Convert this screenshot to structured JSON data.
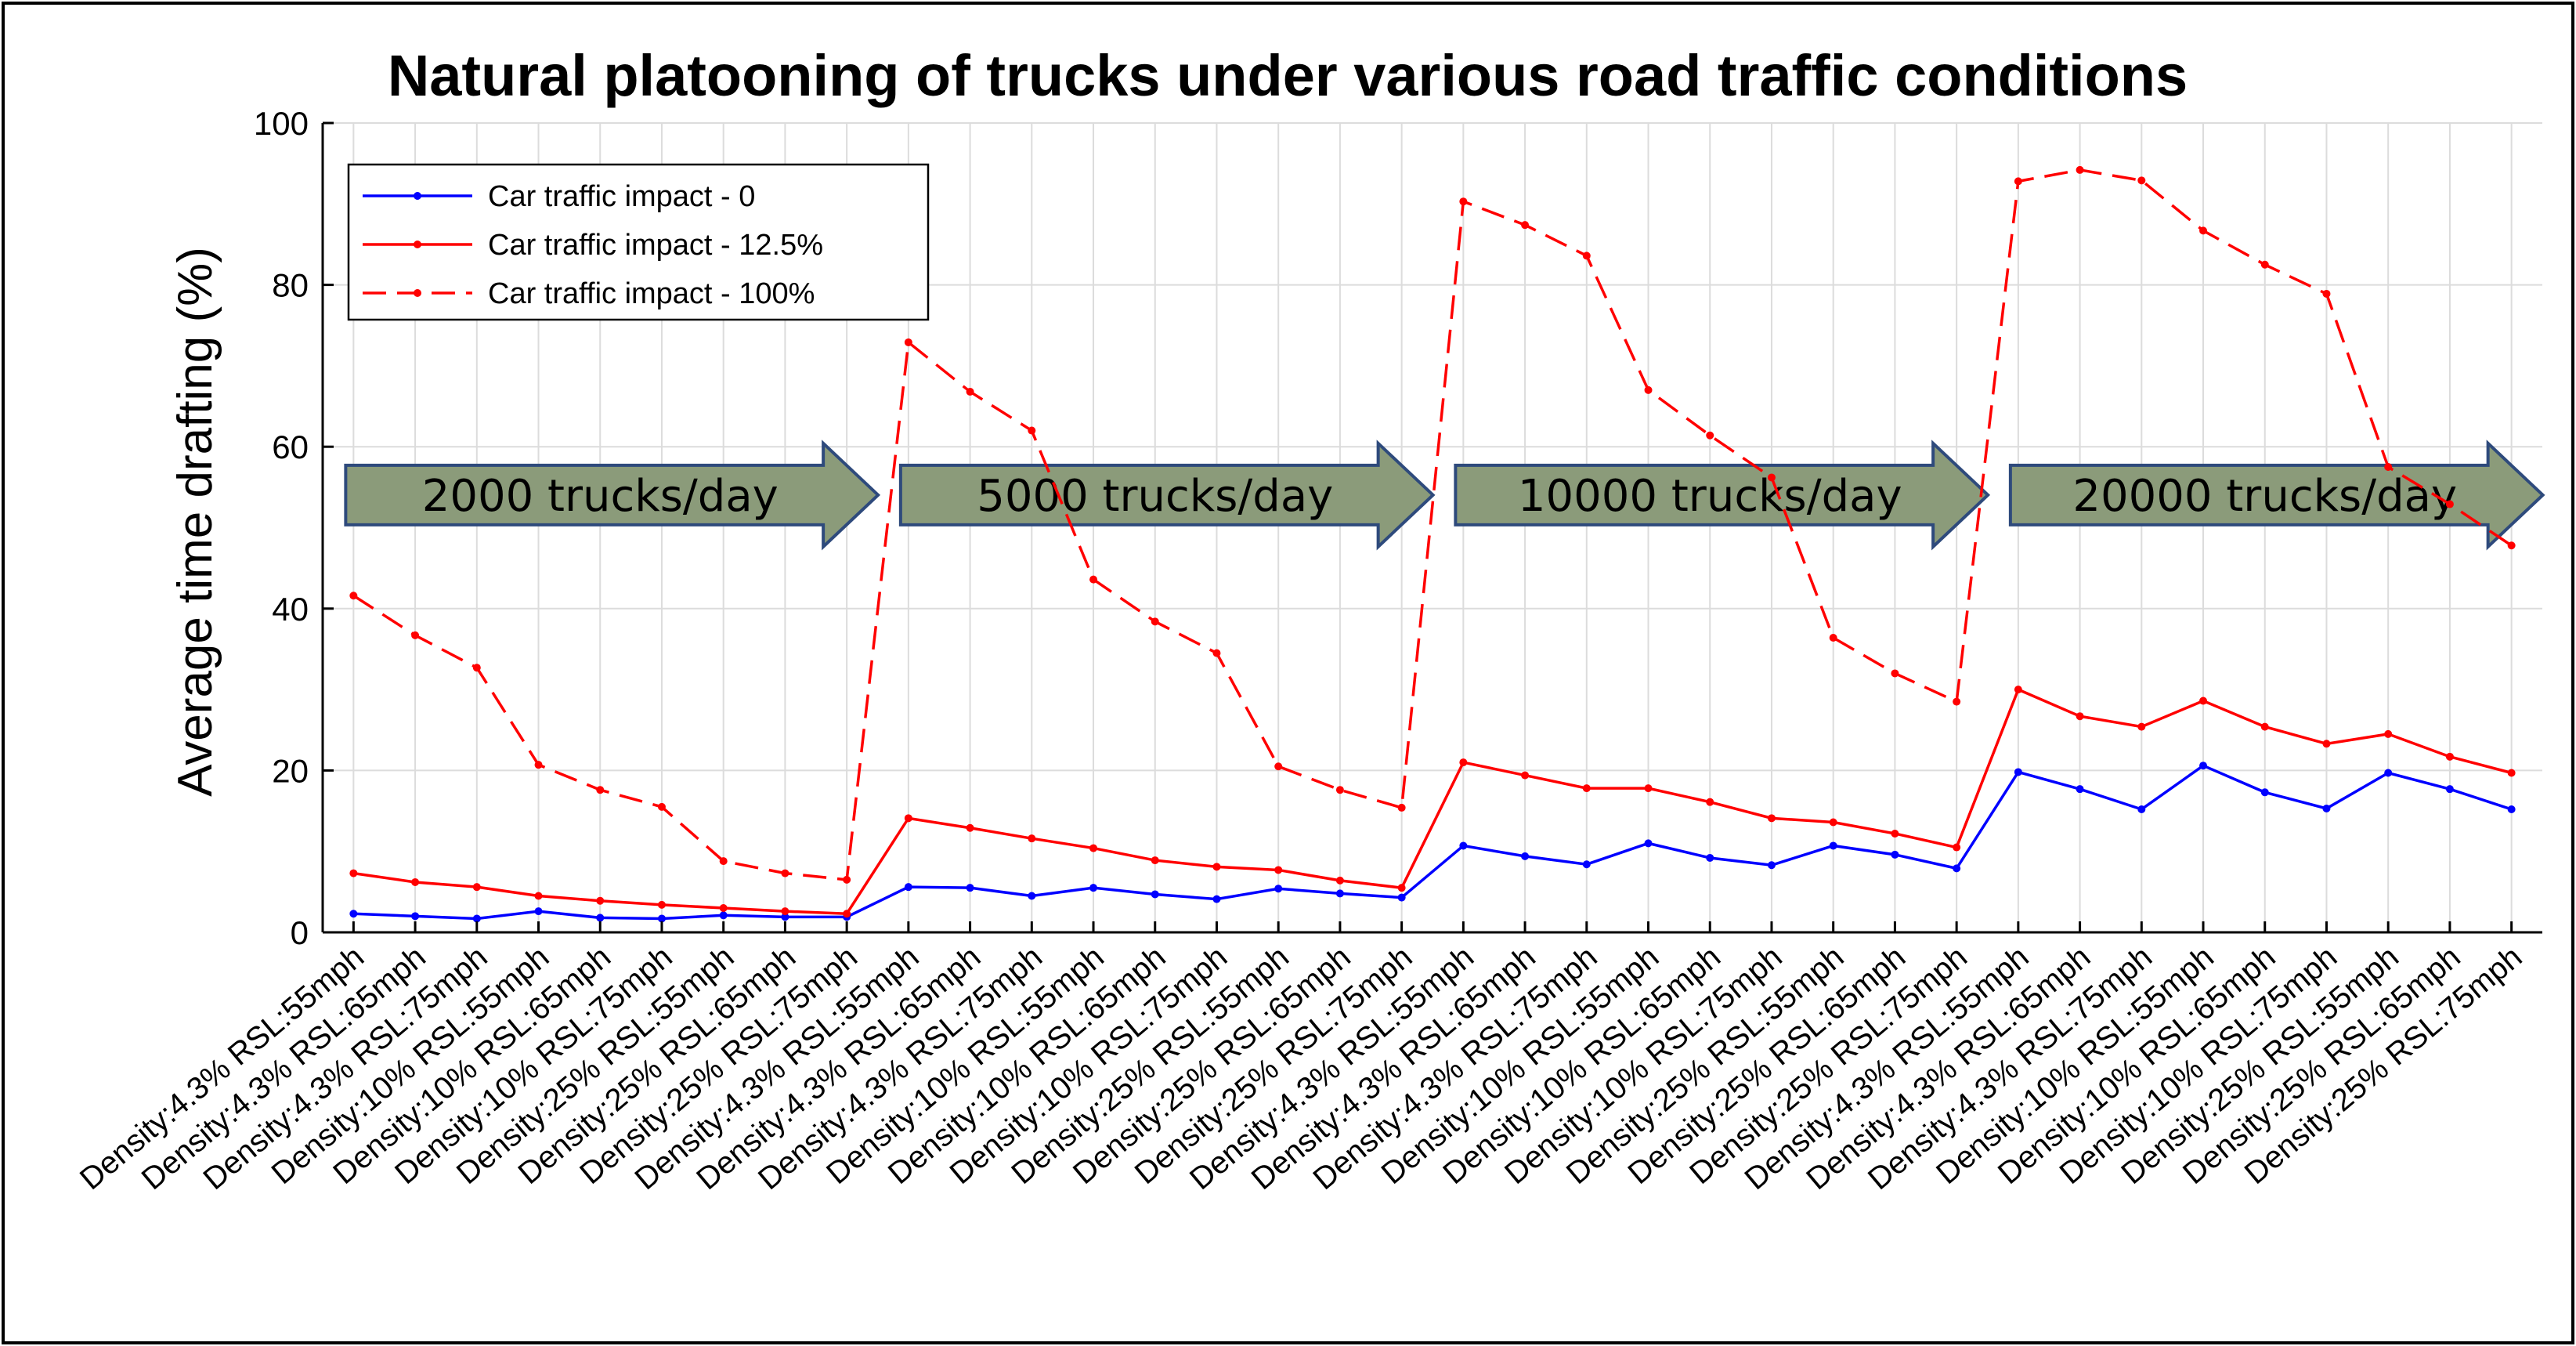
{
  "chart_data": {
    "type": "line",
    "title": "Natural platooning of trucks under various road traffic conditions",
    "xlabel": "",
    "ylabel": "Average time drafting (%)",
    "ylim": [
      0,
      100
    ],
    "yticks": [
      "0",
      "20",
      "40",
      "60",
      "80",
      "100"
    ],
    "grid": true,
    "legend_position": "top-left",
    "categories": [
      "Density:4.3% RSL:55mph",
      "Density:4.3% RSL:65mph",
      "Density:4.3% RSL:75mph",
      "Density:10% RSL:55mph",
      "Density:10% RSL:65mph",
      "Density:10% RSL:75mph",
      "Density:25% RSL:55mph",
      "Density:25% RSL:65mph",
      "Density:25% RSL:75mph",
      "Density:4.3% RSL:55mph",
      "Density:4.3% RSL:65mph",
      "Density:4.3% RSL:75mph",
      "Density:10% RSL:55mph",
      "Density:10% RSL:65mph",
      "Density:10% RSL:75mph",
      "Density:25% RSL:55mph",
      "Density:25% RSL:65mph",
      "Density:25% RSL:75mph",
      "Density:4.3% RSL:55mph",
      "Density:4.3% RSL:65mph",
      "Density:4.3% RSL:75mph",
      "Density:10% RSL:55mph",
      "Density:10% RSL:65mph",
      "Density:10% RSL:75mph",
      "Density:25% RSL:55mph",
      "Density:25% RSL:65mph",
      "Density:25% RSL:75mph",
      "Density:4.3% RSL:55mph",
      "Density:4.3% RSL:65mph",
      "Density:4.3% RSL:75mph",
      "Density:10% RSL:55mph",
      "Density:10% RSL:65mph",
      "Density:10% RSL:75mph",
      "Density:25% RSL:55mph",
      "Density:25% RSL:65mph",
      "Density:25% RSL:75mph"
    ],
    "series": [
      {
        "name": "Car traffic impact - 0",
        "color": "#0000ff",
        "line_style": "solid",
        "values": [
          2.3,
          2.0,
          1.7,
          2.6,
          1.8,
          1.7,
          2.1,
          1.9,
          1.9,
          5.6,
          5.5,
          4.5,
          5.5,
          4.7,
          4.1,
          5.4,
          4.8,
          4.3,
          10.7,
          9.4,
          8.4,
          11.0,
          9.2,
          8.3,
          10.7,
          9.6,
          7.9,
          19.8,
          17.7,
          15.2,
          20.6,
          17.3,
          15.3,
          19.7,
          17.7,
          15.2
        ]
      },
      {
        "name": "Car traffic impact - 12.5%",
        "color": "#ff0000",
        "line_style": "solid",
        "values": [
          7.3,
          6.2,
          5.6,
          4.5,
          3.9,
          3.4,
          3.0,
          2.6,
          2.3,
          14.1,
          12.9,
          11.6,
          10.4,
          8.9,
          8.1,
          7.7,
          6.4,
          5.5,
          21.0,
          19.4,
          17.8,
          17.8,
          16.1,
          14.1,
          13.6,
          12.2,
          10.5,
          30.0,
          26.7,
          25.4,
          28.6,
          25.4,
          23.3,
          24.5,
          21.7,
          19.7
        ]
      },
      {
        "name": "Car traffic impact - 100%",
        "color": "#ff0000",
        "line_style": "dashed",
        "values": [
          41.6,
          36.7,
          32.7,
          20.7,
          17.6,
          15.5,
          8.8,
          7.3,
          6.5,
          72.9,
          66.8,
          62.0,
          43.6,
          38.4,
          34.5,
          20.5,
          17.6,
          15.4,
          90.3,
          87.4,
          83.6,
          67.0,
          61.4,
          56.2,
          36.4,
          32.0,
          28.5,
          92.8,
          94.2,
          92.9,
          86.7,
          82.5,
          78.9,
          57.5,
          52.9,
          47.8
        ]
      }
    ],
    "annotations": [
      {
        "text": "2000 trucks/day",
        "start_index": 0,
        "end_index": 8,
        "y": 55
      },
      {
        "text": "5000 trucks/day",
        "start_index": 9,
        "end_index": 17,
        "y": 55
      },
      {
        "text": "10000 trucks/day",
        "start_index": 18,
        "end_index": 26,
        "y": 55
      },
      {
        "text": "20000 trucks/day",
        "start_index": 27,
        "end_index": 35,
        "y": 55
      }
    ],
    "annotation_fill": "#8b9b7a",
    "annotation_stroke": "#2e4a7c"
  }
}
